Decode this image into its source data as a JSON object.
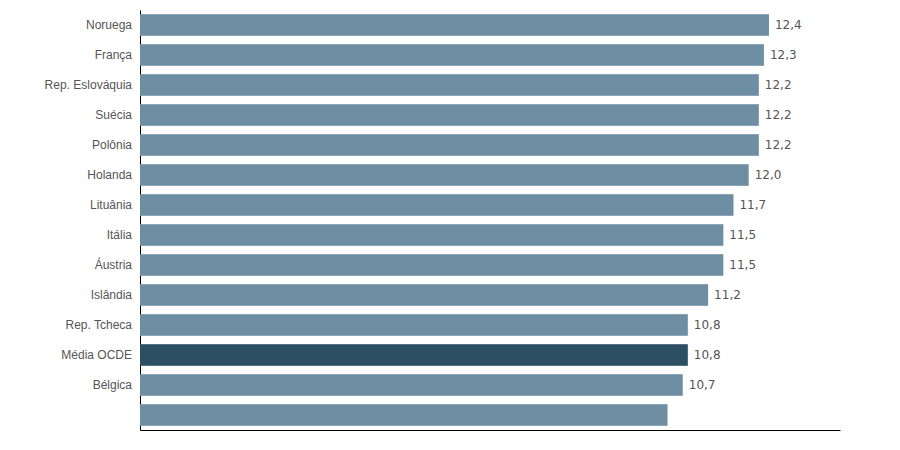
{
  "chart_data": {
    "type": "bar",
    "orientation": "horizontal",
    "categories": [
      "Noruega",
      "França",
      "Rep. Eslováquia",
      "Suécia",
      "Polônia",
      "Holanda",
      "Lituânia",
      "Itália",
      "Áustria",
      "Islândia",
      "Rep. Tcheca",
      "Média OCDE",
      "Bélgica",
      null
    ],
    "values": [
      12.4,
      12.3,
      12.2,
      12.2,
      12.2,
      12.0,
      11.7,
      11.5,
      11.5,
      11.2,
      10.8,
      10.8,
      10.7,
      10.4
    ],
    "value_labels": [
      "12,4",
      "12,3",
      "12,2",
      "12,2",
      "12,2",
      "12,0",
      "11,7",
      "11,5",
      "11,5",
      "11,2",
      "10,8",
      "10,8",
      "10,7",
      null
    ],
    "data_labels": true,
    "colors": [
      "#6e8fa3",
      "#6e8fa3",
      "#6e8fa3",
      "#6e8fa3",
      "#6e8fa3",
      "#6e8fa3",
      "#6e8fa3",
      "#6e8fa3",
      "#6e8fa3",
      "#6e8fa3",
      "#6e8fa3",
      "#2d4f63",
      "#6e8fa3",
      "#6e8fa3"
    ],
    "xlim": [
      0,
      13.8
    ],
    "xticks": [],
    "grid": false,
    "tick_labels": "y"
  }
}
